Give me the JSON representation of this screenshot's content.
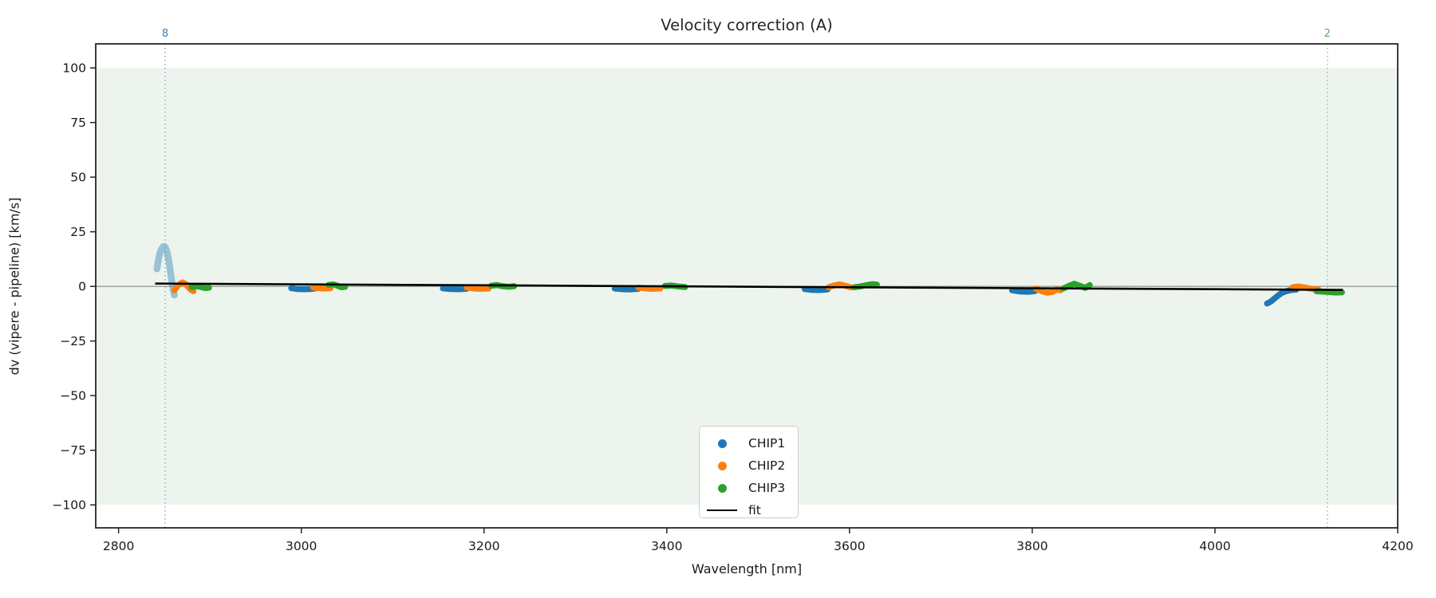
{
  "title": "Velocity correction (A)",
  "chart_data": {
    "type": "scatter",
    "title": "Velocity correction (A)",
    "xlabel": "Wavelength [nm]",
    "ylabel": "dv (vipere - pipeline) [km/s]",
    "xlim": [
      2775,
      4200
    ],
    "ylim": [
      -110.5,
      111
    ],
    "x_ticks": [
      2800,
      3000,
      3200,
      3400,
      3600,
      3800,
      4000,
      4200
    ],
    "y_ticks": [
      100,
      75,
      50,
      25,
      0,
      -25,
      -50,
      -75,
      -100
    ],
    "grid": false,
    "background_band": {
      "ymin": -100,
      "ymax": 100,
      "color": "#edf4ed"
    },
    "zero_line": {
      "y": 0,
      "color": "#7a7a7a"
    },
    "order_markers": [
      {
        "x": 2851,
        "label": "8",
        "line_color": "#8ab9d9",
        "label_color": "#3a7cb5"
      },
      {
        "x": 4123,
        "label": "2",
        "line_color": "#92cd92",
        "label_color": "#57ab57"
      }
    ],
    "series": [
      {
        "name": "CHIP1",
        "color": "#1f77b4",
        "clusters": [
          {
            "opacity": 0.4,
            "width": 8.5,
            "points": [
              [
                2842,
                8
              ],
              [
                2843.5,
                12
              ],
              [
                2845,
                15
              ],
              [
                2847,
                17.2
              ],
              [
                2849,
                18.2
              ],
              [
                2851,
                18
              ],
              [
                2853,
                16
              ],
              [
                2855,
                12
              ],
              [
                2856.5,
                7.5
              ],
              [
                2858,
                3
              ],
              [
                2859.5,
                -1
              ],
              [
                2861,
                -4
              ]
            ]
          },
          {
            "points": [
              [
                2989,
                -0.8
              ],
              [
                2996,
                -1.2
              ],
              [
                3003,
                -1.3
              ],
              [
                3010,
                -1.2
              ],
              [
                3015,
                -1
              ]
            ]
          },
          {
            "points": [
              [
                3155,
                -0.9
              ],
              [
                3163,
                -1.2
              ],
              [
                3172,
                -1.3
              ],
              [
                3181,
                -1.1
              ]
            ]
          },
          {
            "points": [
              [
                3343,
                -1
              ],
              [
                3351,
                -1.3
              ],
              [
                3360,
                -1.4
              ],
              [
                3369,
                -1.1
              ]
            ]
          },
          {
            "points": [
              [
                3551,
                -1.2
              ],
              [
                3559,
                -1.6
              ],
              [
                3568,
                -1.7
              ],
              [
                3576,
                -1.4
              ]
            ]
          },
          {
            "points": [
              [
                3778,
                -1.8
              ],
              [
                3786,
                -2.3
              ],
              [
                3795,
                -2.5
              ],
              [
                3803,
                -2.2
              ]
            ]
          },
          {
            "points": [
              [
                4057,
                -7.8
              ],
              [
                4061,
                -7
              ],
              [
                4065,
                -5.6
              ],
              [
                4069,
                -4.2
              ],
              [
                4073,
                -3
              ],
              [
                4078,
                -2.2
              ],
              [
                4083,
                -1.7
              ],
              [
                4089,
                -1.5
              ]
            ]
          }
        ]
      },
      {
        "name": "CHIP2",
        "color": "#ff7f0e",
        "clusters": [
          {
            "points": [
              [
                2861,
                -1.8
              ],
              [
                2864,
                -0.2
              ],
              [
                2867,
                1.2
              ],
              [
                2870,
                1.8
              ],
              [
                2873,
                1.2
              ],
              [
                2876,
                -0.2
              ],
              [
                2879,
                -1.5
              ],
              [
                2882,
                -2.2
              ]
            ]
          },
          {
            "points": [
              [
                3013,
                -0.5
              ],
              [
                3019,
                -0.8
              ],
              [
                3026,
                -1
              ],
              [
                3032,
                -0.8
              ]
            ]
          },
          {
            "points": [
              [
                3181,
                -0.5
              ],
              [
                3188,
                -0.9
              ],
              [
                3196,
                -1.1
              ],
              [
                3205,
                -1
              ]
            ]
          },
          {
            "points": [
              [
                3369,
                -0.6
              ],
              [
                3377,
                -0.9
              ],
              [
                3385,
                -1.1
              ],
              [
                3393,
                -0.9
              ]
            ]
          },
          {
            "points": [
              [
                3577,
                -0.4
              ],
              [
                3583,
                0.4
              ],
              [
                3589,
                0.9
              ],
              [
                3596,
                0.2
              ],
              [
                3602,
                -0.5
              ]
            ]
          },
          {
            "points": [
              [
                3804,
                -1
              ],
              [
                3810,
                -2.1
              ],
              [
                3816,
                -2.9
              ],
              [
                3822,
                -2.6
              ],
              [
                3827,
                -1.4
              ],
              [
                3831,
                -1.8
              ]
            ]
          },
          {
            "points": [
              [
                4085,
                -0.4
              ],
              [
                4091,
                0
              ],
              [
                4097,
                -0.4
              ],
              [
                4104,
                -1
              ],
              [
                4110,
                -1.4
              ],
              [
                4113,
                -1.3
              ]
            ]
          }
        ]
      },
      {
        "name": "CHIP3",
        "color": "#2ca02c",
        "clusters": [
          {
            "points": [
              [
                2880,
                -0.4
              ],
              [
                2885,
                0.1
              ],
              [
                2890,
                -0.3
              ],
              [
                2895,
                -0.8
              ],
              [
                2899,
                -0.6
              ]
            ]
          },
          {
            "points": [
              [
                3030,
                0.7
              ],
              [
                3035,
                0.9
              ],
              [
                3040,
                0.2
              ],
              [
                3044,
                -0.4
              ],
              [
                3048,
                -0.2
              ]
            ]
          },
          {
            "points": [
              [
                3208,
                0.3
              ],
              [
                3214,
                0.6
              ],
              [
                3220,
                0.1
              ],
              [
                3227,
                -0.2
              ],
              [
                3233,
                0.1
              ]
            ]
          },
          {
            "points": [
              [
                3398,
                0.2
              ],
              [
                3405,
                0.4
              ],
              [
                3412,
                0
              ],
              [
                3420,
                -0.3
              ]
            ]
          },
          {
            "points": [
              [
                3605,
                -0.4
              ],
              [
                3612,
                0
              ],
              [
                3619,
                0.6
              ],
              [
                3625,
                1
              ],
              [
                3630,
                0.8
              ]
            ]
          },
          {
            "points": [
              [
                3834,
                -1
              ],
              [
                3840,
                0.2
              ],
              [
                3846,
                1.2
              ],
              [
                3852,
                0.3
              ],
              [
                3858,
                -0.7
              ],
              [
                3863,
                0.6
              ]
            ]
          },
          {
            "points": [
              [
                4111,
                -2.2
              ],
              [
                4118,
                -2.4
              ],
              [
                4125,
                -2.6
              ],
              [
                4132,
                -2.8
              ],
              [
                4139,
                -2.7
              ]
            ]
          }
        ]
      }
    ],
    "fit": {
      "label": "fit",
      "color": "#000000",
      "points": [
        [
          2840,
          1.3
        ],
        [
          4140,
          -1.6
        ]
      ]
    },
    "legend_position": "lower center",
    "axis_color": "#262626"
  }
}
